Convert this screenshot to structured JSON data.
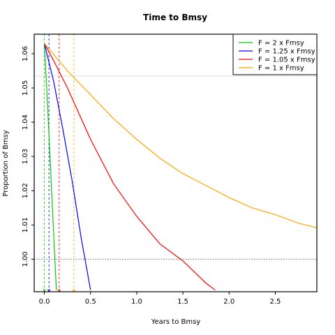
{
  "chart_data": {
    "type": "line",
    "title": "Time to Bmsy",
    "xlabel": "Years to Bmsy",
    "ylabel": "Proportion of Bmsy",
    "xlim": [
      -0.11,
      2.95
    ],
    "ylim": [
      0.9905,
      1.0657
    ],
    "x_ticks": [
      0.0,
      0.5,
      1.0,
      1.5,
      2.0,
      2.5
    ],
    "x_tick_labels": [
      "0.0",
      "0.5",
      "1.0",
      "1.5",
      "2.0",
      "2.5"
    ],
    "y_ticks": [
      1.0,
      1.01,
      1.02,
      1.03,
      1.04,
      1.05,
      1.06
    ],
    "y_tick_labels": [
      "1.00",
      "1.01",
      "1.02",
      "1.03",
      "1.04",
      "1.05",
      "1.06"
    ],
    "reference_line": {
      "y": 1.0,
      "style": "dotted",
      "color": "#666666"
    },
    "grid": false,
    "legend_position": "top-right",
    "series": [
      {
        "name": "F = 2 x Fmsy",
        "color": "#00cc00",
        "start": [
          0.0,
          1.063
        ],
        "points": [
          [
            0.0,
            1.063
          ],
          [
            0.035,
            1.045
          ],
          [
            0.07,
            1.025
          ],
          [
            0.105,
            1.005
          ],
          [
            0.13,
            0.991
          ]
        ],
        "vline_x": 0.0
      },
      {
        "name": "F = 1.25 x Fmsy",
        "color": "#0000ff",
        "start": [
          0.0,
          1.063
        ],
        "points": [
          [
            0.0,
            1.063
          ],
          [
            0.1,
            1.052
          ],
          [
            0.2,
            1.038
          ],
          [
            0.3,
            1.023
          ],
          [
            0.4,
            1.006
          ],
          [
            0.5,
            0.991
          ]
        ],
        "vline_x": 0.05
      },
      {
        "name": "F = 1.05 x Fmsy",
        "color": "#ff0000",
        "start": [
          0.0,
          1.063
        ],
        "points": [
          [
            0.0,
            1.063
          ],
          [
            0.1,
            1.058
          ],
          [
            0.25,
            1.05
          ],
          [
            0.5,
            1.035
          ],
          [
            0.75,
            1.022
          ],
          [
            1.0,
            1.0125
          ],
          [
            1.25,
            1.0045
          ],
          [
            1.5,
            0.9995
          ],
          [
            1.75,
            0.993
          ],
          [
            1.85,
            0.991
          ]
        ],
        "vline_x": 0.16
      },
      {
        "name": "F = 1 x Fmsy",
        "color": "#ffa500",
        "start": [
          0.0,
          1.063
        ],
        "points": [
          [
            0.0,
            1.063
          ],
          [
            0.25,
            1.055
          ],
          [
            0.5,
            1.048
          ],
          [
            0.75,
            1.041
          ],
          [
            1.0,
            1.035
          ],
          [
            1.25,
            1.0295
          ],
          [
            1.5,
            1.025
          ],
          [
            1.75,
            1.0215
          ],
          [
            2.0,
            1.018
          ],
          [
            2.25,
            1.015
          ],
          [
            2.5,
            1.013
          ],
          [
            2.75,
            1.0105
          ],
          [
            2.95,
            1.0092
          ]
        ],
        "vline_x": 0.32
      }
    ]
  }
}
